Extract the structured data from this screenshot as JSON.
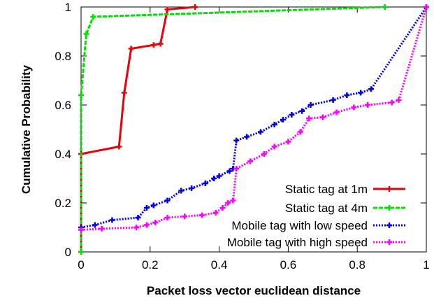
{
  "chart_data": {
    "type": "line",
    "title": "",
    "xlabel": "Packet loss vector euclidean distance",
    "ylabel": "Cumulative Probability",
    "xlim": [
      0,
      1
    ],
    "ylim": [
      0,
      1
    ],
    "x_ticks": [
      "0",
      "0.2",
      "0.4",
      "0.6",
      "0.8",
      "1"
    ],
    "y_ticks": [
      "0",
      "0.2",
      "0.4",
      "0.6",
      "0.8",
      "1"
    ],
    "grid": false,
    "legend_position": "bottom-right",
    "series": [
      {
        "name": "Static tag at 1m",
        "color": "#e8000b",
        "dash": "solid",
        "points": [
          [
            0,
            0
          ],
          [
            0,
            0.4
          ],
          [
            0.11,
            0.43
          ],
          [
            0.125,
            0.65
          ],
          [
            0.145,
            0.83
          ],
          [
            0.21,
            0.845
          ],
          [
            0.23,
            0.85
          ],
          [
            0.25,
            0.99
          ],
          [
            0.33,
            1.0
          ]
        ]
      },
      {
        "name": "Static tag at 4m",
        "color": "#00e000",
        "dash": "dashed",
        "points": [
          [
            0,
            0
          ],
          [
            0,
            0.64
          ],
          [
            0.015,
            0.89
          ],
          [
            0.035,
            0.96
          ],
          [
            0.88,
            1.0
          ]
        ]
      },
      {
        "name": "Mobile tag with low speed",
        "color": "#0000e0",
        "dash": "dotted",
        "points": [
          [
            0,
            0.1
          ],
          [
            0.04,
            0.11
          ],
          [
            0.09,
            0.13
          ],
          [
            0.165,
            0.14
          ],
          [
            0.19,
            0.18
          ],
          [
            0.21,
            0.19
          ],
          [
            0.25,
            0.21
          ],
          [
            0.29,
            0.25
          ],
          [
            0.32,
            0.26
          ],
          [
            0.36,
            0.28
          ],
          [
            0.385,
            0.3
          ],
          [
            0.4,
            0.31
          ],
          [
            0.43,
            0.33
          ],
          [
            0.44,
            0.34
          ],
          [
            0.45,
            0.455
          ],
          [
            0.48,
            0.47
          ],
          [
            0.52,
            0.49
          ],
          [
            0.56,
            0.52
          ],
          [
            0.585,
            0.54
          ],
          [
            0.61,
            0.56
          ],
          [
            0.64,
            0.575
          ],
          [
            0.665,
            0.6
          ],
          [
            0.73,
            0.62
          ],
          [
            0.77,
            0.64
          ],
          [
            0.81,
            0.65
          ],
          [
            0.84,
            0.665
          ],
          [
            1.0,
            1.0
          ]
        ]
      },
      {
        "name": "Mobile tag with high speed",
        "color": "#ff00ff",
        "dash": "dotted",
        "points": [
          [
            0,
            0.09
          ],
          [
            0.06,
            0.095
          ],
          [
            0.16,
            0.1
          ],
          [
            0.19,
            0.11
          ],
          [
            0.215,
            0.12
          ],
          [
            0.25,
            0.14
          ],
          [
            0.3,
            0.145
          ],
          [
            0.35,
            0.15
          ],
          [
            0.39,
            0.16
          ],
          [
            0.41,
            0.18
          ],
          [
            0.425,
            0.2
          ],
          [
            0.44,
            0.21
          ],
          [
            0.45,
            0.34
          ],
          [
            0.49,
            0.37
          ],
          [
            0.53,
            0.4
          ],
          [
            0.56,
            0.43
          ],
          [
            0.6,
            0.45
          ],
          [
            0.635,
            0.49
          ],
          [
            0.66,
            0.545
          ],
          [
            0.7,
            0.55
          ],
          [
            0.74,
            0.57
          ],
          [
            0.79,
            0.59
          ],
          [
            0.83,
            0.6
          ],
          [
            0.9,
            0.61
          ],
          [
            0.92,
            0.62
          ],
          [
            1.0,
            1.0
          ]
        ]
      }
    ]
  }
}
